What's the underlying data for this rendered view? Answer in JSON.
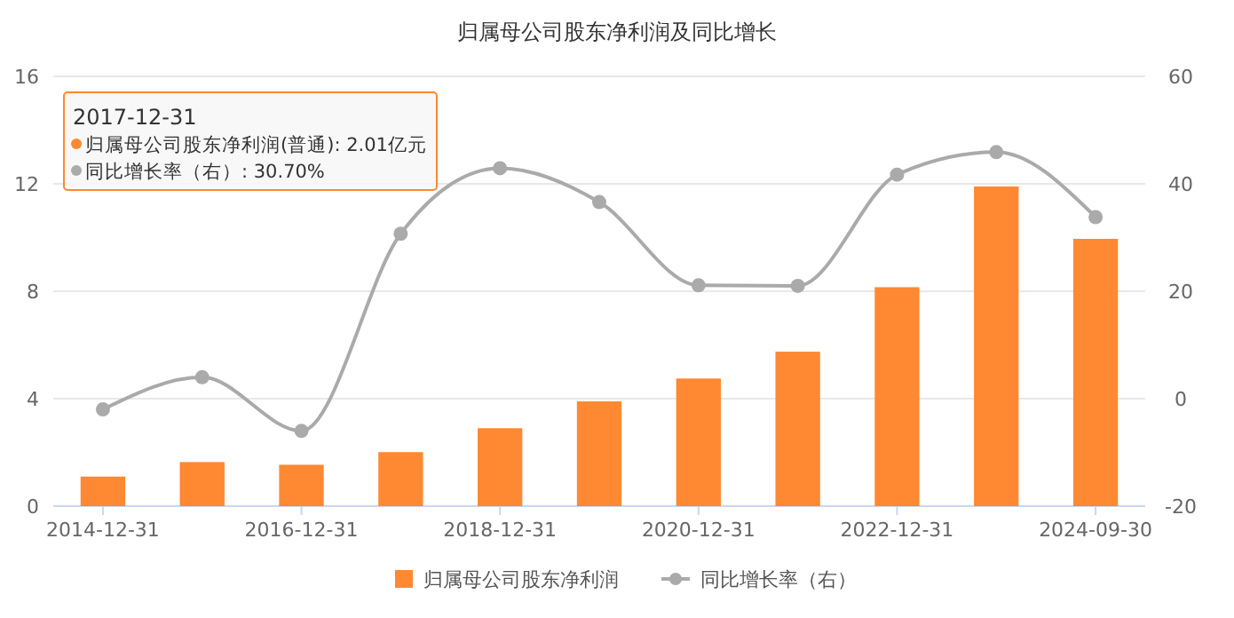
{
  "chart_data": {
    "type": "bar",
    "title": "归属母公司股东净利润及同比增长",
    "categories": [
      "2014-12-31",
      null,
      "2016-12-31",
      null,
      "2018-12-31",
      null,
      "2020-12-31",
      null,
      "2022-12-31",
      null,
      "2024-09-30"
    ],
    "series": [
      {
        "name": "归属母公司股东净利润",
        "color": "#ff8833",
        "values": [
          1.1,
          1.64,
          1.54,
          2.01,
          2.9,
          3.9,
          4.75,
          5.75,
          8.15,
          11.9,
          9.95
        ]
      },
      {
        "name": "同比增长率（右）",
        "type": "line",
        "axis": "y2",
        "color": "#aaaaaa",
        "values": [
          -2,
          4,
          -6,
          30.7,
          42.9,
          36.6,
          21.1,
          21,
          41.7,
          45.9,
          33.8
        ]
      }
    ],
    "ylim": [
      0,
      16
    ],
    "yticks": [
      0,
      4,
      8,
      12,
      16
    ],
    "y2lim": [
      -20,
      60
    ],
    "y2ticks": [
      -20,
      0,
      20,
      40,
      60
    ],
    "grid": "y",
    "legend": "bottom",
    "marker": "circle",
    "annotations": [
      "2017-12-31",
      "归属母公司股东净利润(普通): 2.01亿元",
      "同比增长率（右）: 30.70%"
    ]
  }
}
